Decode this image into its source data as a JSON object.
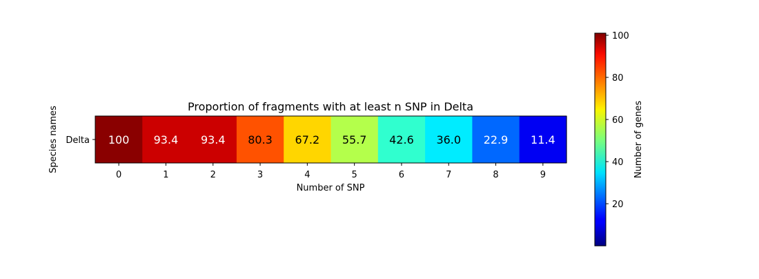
{
  "chart_data": {
    "type": "heatmap",
    "title": "Proportion of fragments with at least n SNP in Delta",
    "xlabel": "Number of SNP",
    "ylabel": "Species names",
    "x": [
      "0",
      "1",
      "2",
      "3",
      "4",
      "5",
      "6",
      "7",
      "8",
      "9"
    ],
    "y": [
      "Delta"
    ],
    "values": [
      [
        100,
        93.4,
        93.4,
        80.3,
        67.2,
        55.7,
        42.6,
        36.0,
        22.9,
        11.4
      ]
    ],
    "value_labels": [
      [
        "100",
        "93.4",
        "93.4",
        "80.3",
        "67.2",
        "55.7",
        "42.6",
        "36.0",
        "22.9",
        "11.4"
      ]
    ],
    "colormap": "jet",
    "colorbar": {
      "label": "Number of genes",
      "range": [
        0,
        101
      ],
      "ticks": [
        20,
        40,
        60,
        80,
        100
      ]
    },
    "grid": false
  }
}
